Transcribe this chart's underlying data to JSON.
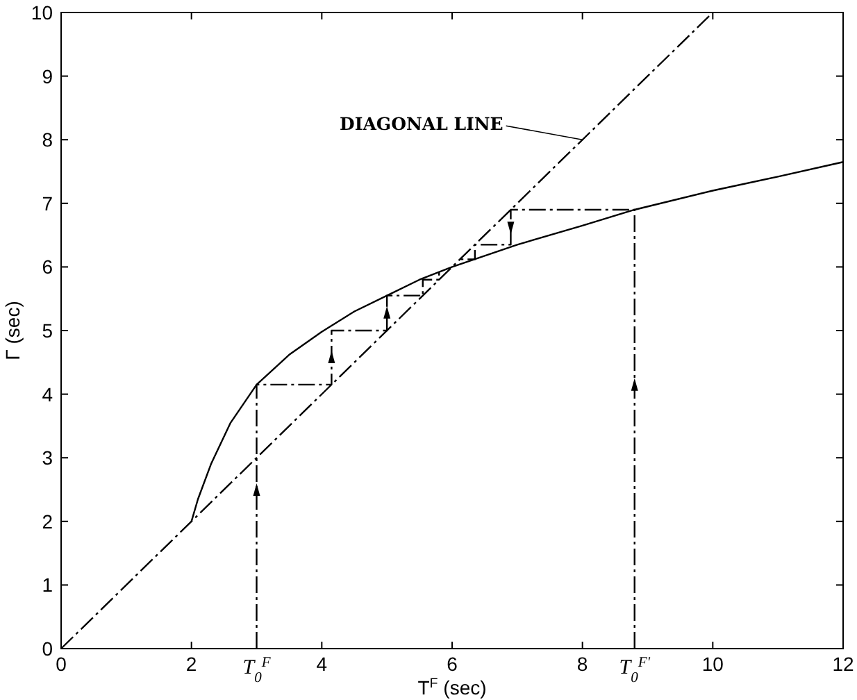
{
  "chart_data": {
    "type": "line",
    "xlabel": "T$^{F}$ (sec)",
    "ylabel": "Γ (sec)",
    "xlim": [
      0,
      12
    ],
    "ylim": [
      0,
      10
    ],
    "xticks": [
      0,
      2,
      4,
      6,
      8,
      10,
      12
    ],
    "yticks": [
      0,
      1,
      2,
      3,
      4,
      5,
      6,
      7,
      8,
      9,
      10
    ],
    "grid": false,
    "series": [
      {
        "color": "#000000",
        "line_style": "solid",
        "x": [
          2,
          2.1,
          2.3,
          2.6,
          3,
          3.5,
          4,
          4.5,
          5,
          5.5,
          6,
          7,
          8,
          8.8,
          10,
          11,
          12
        ],
        "values": [
          2,
          2.35,
          2.9,
          3.55,
          4.15,
          4.62,
          4.98,
          5.3,
          5.55,
          5.8,
          6,
          6.35,
          6.65,
          6.9,
          7.2,
          7.42,
          7.65
        ]
      },
      {
        "color": "#000000",
        "line_style": "dashed",
        "x": [
          0,
          10
        ],
        "values": [
          0,
          10
        ]
      },
      {
        "color": "#000000",
        "line_style": "dashed",
        "x": [
          3,
          3,
          4.15,
          4.15,
          5,
          5,
          5.55,
          5.55,
          5.8,
          5.8
        ],
        "values": [
          0,
          4.15,
          4.15,
          5,
          5,
          5.55,
          5.55,
          5.8,
          5.8,
          5.92
        ]
      },
      {
        "color": "#000000",
        "line_style": "dashed",
        "x": [
          8.8,
          8.8,
          6.9,
          6.9,
          6.35,
          6.35,
          6.12,
          6.12
        ],
        "values": [
          0,
          6.9,
          6.9,
          6.35,
          6.35,
          6.12,
          6.12,
          6.08
        ]
      }
    ],
    "annotations": [
      {
        "text": "DIAGONAL LINE",
        "x": 8,
        "y": 8
      },
      {
        "text": "T$_{0}$$^{F}$",
        "x": 3,
        "y": 0
      },
      {
        "text": "T$_{0}$$^{F'}$",
        "x": 8.8,
        "y": 0
      }
    ]
  }
}
